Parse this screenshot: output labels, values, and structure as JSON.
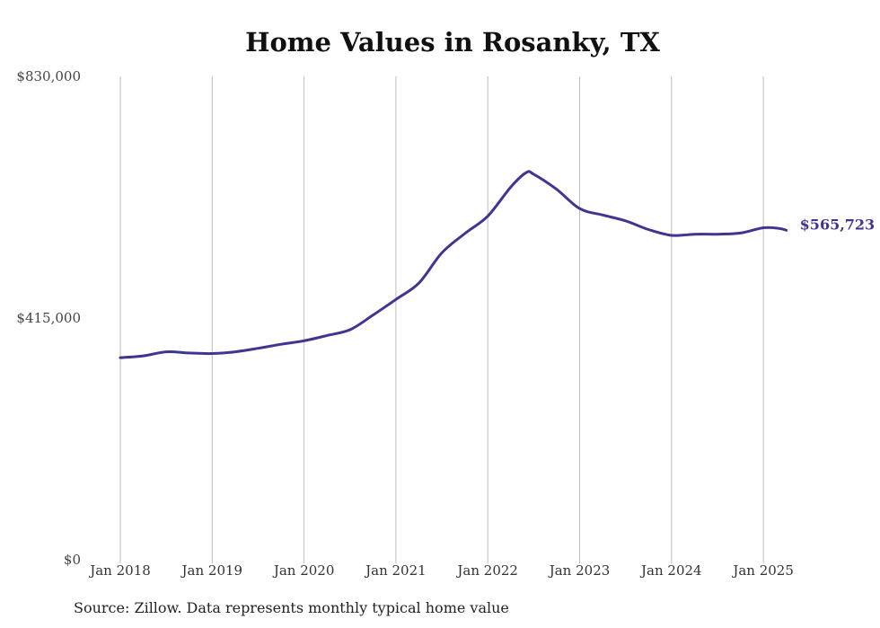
{
  "chart_data": {
    "type": "line",
    "title": "Home Values in Rosanky, TX",
    "xlabel": "",
    "ylabel": "",
    "ylim": [
      0,
      830000
    ],
    "y_ticks": [
      {
        "value": 0,
        "label": "$0"
      },
      {
        "value": 415000,
        "label": "$415,000"
      },
      {
        "value": 830000,
        "label": "$830,000"
      }
    ],
    "x_range": [
      2018.0,
      2025.25
    ],
    "x_ticks": [
      {
        "value": 2018,
        "label": "Jan 2018"
      },
      {
        "value": 2019,
        "label": "Jan 2019"
      },
      {
        "value": 2020,
        "label": "Jan 2020"
      },
      {
        "value": 2021,
        "label": "Jan 2021"
      },
      {
        "value": 2022,
        "label": "Jan 2022"
      },
      {
        "value": 2023,
        "label": "Jan 2023"
      },
      {
        "value": 2024,
        "label": "Jan 2024"
      },
      {
        "value": 2025,
        "label": "Jan 2025"
      }
    ],
    "grid": "vertical",
    "line_color": "#3f3691",
    "series": [
      {
        "x": [
          2018.0,
          2018.25,
          2018.5,
          2018.75,
          2019.0,
          2019.25,
          2019.5,
          2019.75,
          2020.0,
          2020.25,
          2020.5,
          2020.75,
          2021.0,
          2021.25,
          2021.5,
          2021.75,
          2022.0,
          2022.25,
          2022.42,
          2022.5,
          2022.75,
          2023.0,
          2023.25,
          2023.5,
          2023.75,
          2024.0,
          2024.25,
          2024.5,
          2024.75,
          2025.0,
          2025.17,
          2025.25
        ],
        "y": [
          347000,
          350000,
          357000,
          355000,
          354000,
          357000,
          363000,
          370000,
          376000,
          385000,
          395000,
          420000,
          447000,
          475000,
          527000,
          560000,
          590000,
          640000,
          665000,
          662000,
          636000,
          603000,
          592000,
          582000,
          567000,
          557000,
          559000,
          559000,
          561000,
          570000,
          569000,
          565723
        ]
      }
    ],
    "end_label": "$565,723",
    "source": "Source: Zillow. Data represents monthly typical home value"
  }
}
